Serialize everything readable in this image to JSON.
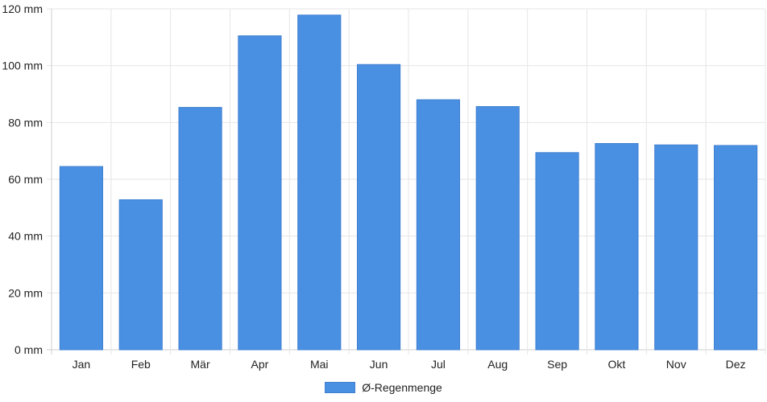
{
  "chart_data": {
    "type": "bar",
    "categories": [
      "Jan",
      "Feb",
      "Mär",
      "Apr",
      "Mai",
      "Jun",
      "Jul",
      "Aug",
      "Sep",
      "Okt",
      "Nov",
      "Dez"
    ],
    "series": [
      {
        "name": "Ø-Regenmenge",
        "values": [
          64.5,
          52.8,
          85.3,
          110.5,
          117.8,
          100.4,
          88.0,
          85.6,
          69.4,
          72.6,
          72.1,
          71.9
        ],
        "color": "#4a90e2"
      }
    ],
    "ylim": [
      0,
      120
    ],
    "yticks": [
      "0 mm",
      "20 mm",
      "40 mm",
      "60 mm",
      "80 mm",
      "100 mm",
      "120 mm"
    ],
    "grid": true,
    "legend": "bottom-center",
    "colors": {
      "bar": "#4a90e2",
      "bar_border": "#3f7fd0",
      "grid": "#e6e6e6",
      "text": "#222222"
    }
  }
}
